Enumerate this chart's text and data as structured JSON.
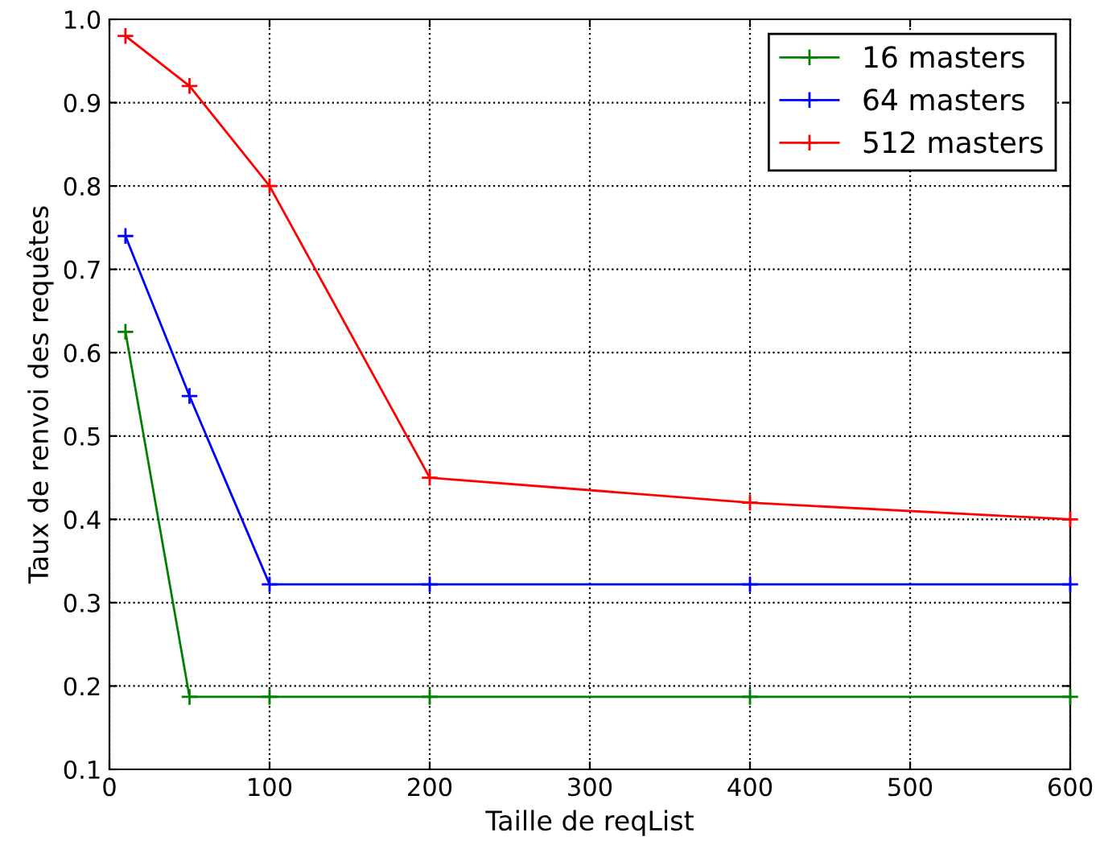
{
  "chart_data": {
    "type": "line",
    "xlabel": "Taille de reqList",
    "ylabel": "Taux de renvoi des requêtes",
    "x": [
      10,
      50,
      100,
      200,
      400,
      600
    ],
    "series": [
      {
        "name": "16 masters",
        "color": "#008000",
        "values": [
          0.625,
          0.187,
          0.187,
          0.187,
          0.187,
          0.187
        ]
      },
      {
        "name": "64 masters",
        "color": "#0000ff",
        "values": [
          0.74,
          0.548,
          0.322,
          0.322,
          0.322,
          0.322
        ]
      },
      {
        "name": "512 masters",
        "color": "#ff0000",
        "values": [
          0.98,
          0.92,
          0.8,
          0.45,
          0.42,
          0.4
        ]
      }
    ],
    "xlim": [
      0,
      600
    ],
    "xticks": [
      0,
      100,
      200,
      300,
      400,
      500,
      600
    ],
    "ylim": [
      0.1,
      1.0
    ],
    "yticks": [
      {
        "value": 0.1,
        "label": "0.1"
      },
      {
        "value": 0.2,
        "label": "0.2"
      },
      {
        "value": 0.3,
        "label": "0.3"
      },
      {
        "value": 0.4,
        "label": "0.4"
      },
      {
        "value": 0.5,
        "label": "0.5"
      },
      {
        "value": 0.6,
        "label": "0.6"
      },
      {
        "value": 0.7,
        "label": "0.7"
      },
      {
        "value": 0.8,
        "label": "0.8"
      },
      {
        "value": 0.9,
        "label": "0.9"
      },
      {
        "value": 1.0,
        "label": "1.0"
      }
    ],
    "grid": true,
    "legend": "top right",
    "marker": "cross",
    "line_style": "solid"
  }
}
